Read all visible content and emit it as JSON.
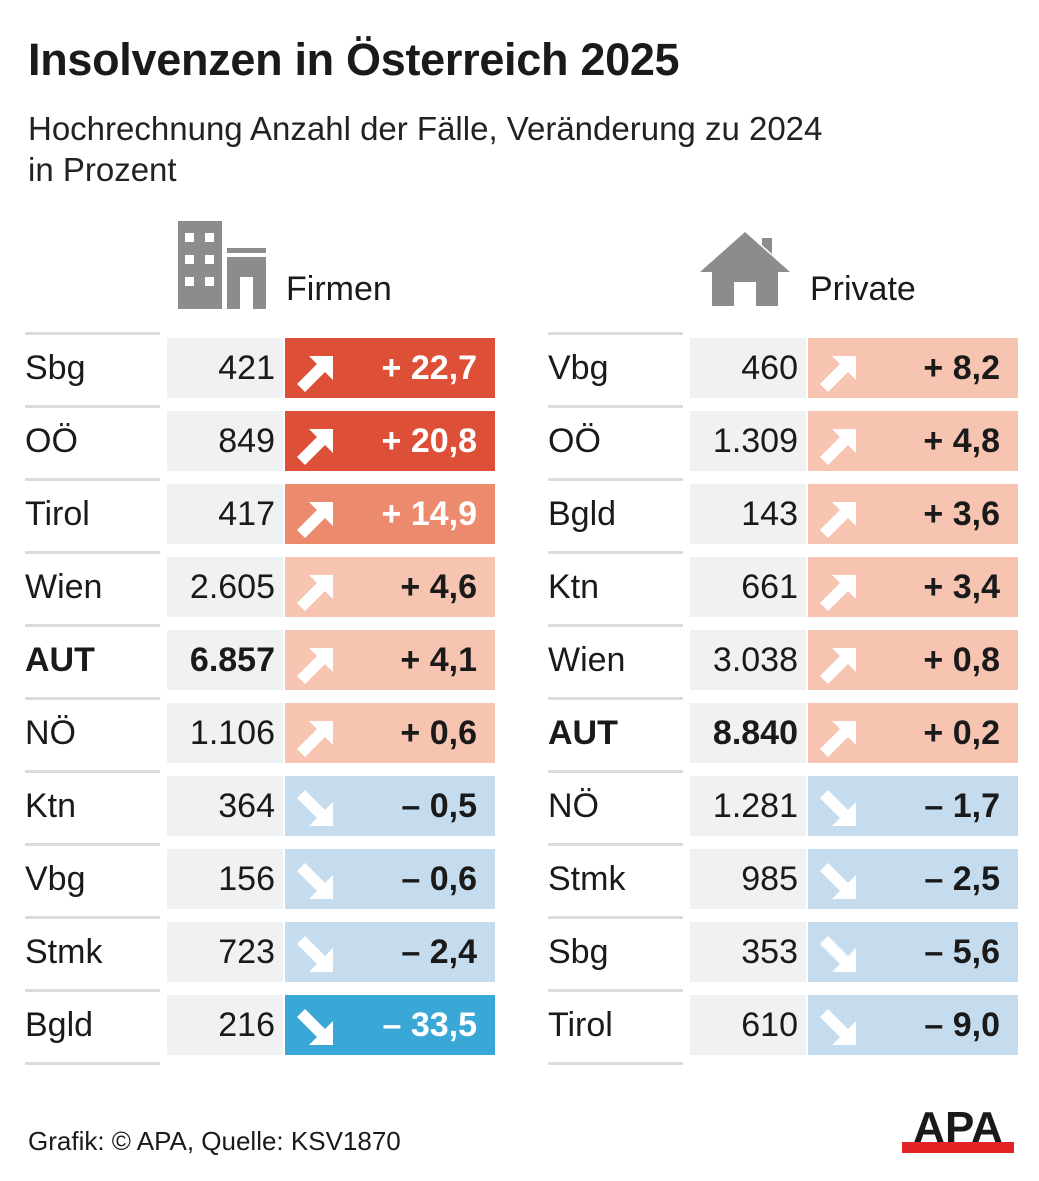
{
  "title": "Insolvenzen in Österreich 2025",
  "subtitle_line1": "Hochrechnung Anzahl der Fälle, Veränderung zu 2024",
  "subtitle_line2": "in Prozent",
  "colors": {
    "strong-up": "#dd4f36",
    "mid-up": "#ec8a6e",
    "light-up": "#f6c4b0",
    "light-down": "#c4dcee",
    "strong-down": "#3aa8d6",
    "number-bg": "#f0f1f2",
    "logo-red": "#e42424"
  },
  "footer": "Grafik: © APA, Quelle: KSV1870",
  "logo": "APA",
  "chart_data": {
    "type": "table",
    "tables": [
      {
        "name": "Firmen",
        "icon": "building-icon",
        "rows": [
          {
            "region": "Sbg",
            "count": "421",
            "change": "+ 22,7",
            "tone": "strong-up"
          },
          {
            "region": "OÖ",
            "count": "849",
            "change": "+ 20,8",
            "tone": "strong-up"
          },
          {
            "region": "Tirol",
            "count": "417",
            "change": "+ 14,9",
            "tone": "mid-up"
          },
          {
            "region": "Wien",
            "count": "2.605",
            "change": "+ 4,6",
            "tone": "light-up"
          },
          {
            "region": "AUT",
            "count": "6.857",
            "change": "+ 4,1",
            "tone": "light-up",
            "bold": true
          },
          {
            "region": "NÖ",
            "count": "1.106",
            "change": "+ 0,6",
            "tone": "light-up"
          },
          {
            "region": "Ktn",
            "count": "364",
            "change": "– 0,5",
            "tone": "light-down"
          },
          {
            "region": "Vbg",
            "count": "156",
            "change": "– 0,6",
            "tone": "light-down"
          },
          {
            "region": "Stmk",
            "count": "723",
            "change": "– 2,4",
            "tone": "light-down"
          },
          {
            "region": "Bgld",
            "count": "216",
            "change": "– 33,5",
            "tone": "strong-down"
          }
        ]
      },
      {
        "name": "Private",
        "icon": "house-icon",
        "rows": [
          {
            "region": "Vbg",
            "count": "460",
            "change": "+ 8,2",
            "tone": "light-up"
          },
          {
            "region": "OÖ",
            "count": "1.309",
            "change": "+ 4,8",
            "tone": "light-up"
          },
          {
            "region": "Bgld",
            "count": "143",
            "change": "+ 3,6",
            "tone": "light-up"
          },
          {
            "region": "Ktn",
            "count": "661",
            "change": "+ 3,4",
            "tone": "light-up"
          },
          {
            "region": "Wien",
            "count": "3.038",
            "change": "+ 0,8",
            "tone": "light-up"
          },
          {
            "region": "AUT",
            "count": "8.840",
            "change": "+ 0,2",
            "tone": "light-up",
            "bold": true
          },
          {
            "region": "NÖ",
            "count": "1.281",
            "change": "– 1,7",
            "tone": "light-down"
          },
          {
            "region": "Stmk",
            "count": "985",
            "change": "– 2,5",
            "tone": "light-down"
          },
          {
            "region": "Sbg",
            "count": "353",
            "change": "– 5,6",
            "tone": "light-down"
          },
          {
            "region": "Tirol",
            "count": "610",
            "change": "– 9,0",
            "tone": "light-down"
          }
        ]
      }
    ]
  }
}
